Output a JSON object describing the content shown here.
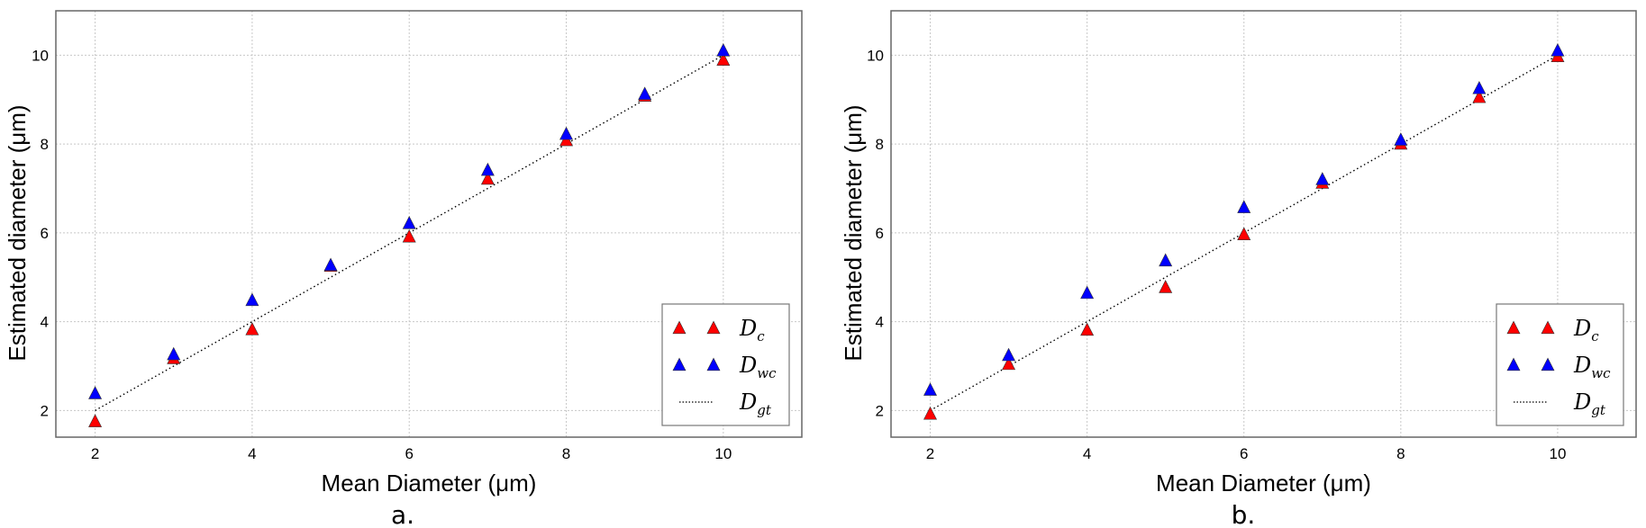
{
  "chart_data": [
    {
      "type": "scatter",
      "caption": "a.",
      "xlabel": "Mean Diameter (μm)",
      "ylabel": "Estimated diameter (μm)",
      "xlim": [
        1.5,
        11
      ],
      "ylim": [
        1.4,
        11
      ],
      "xticks": [
        "2",
        "4",
        "6",
        "8",
        "10"
      ],
      "yticks": [
        "2",
        "4",
        "6",
        "8",
        "10"
      ],
      "grid": true,
      "legend_position": "lower-right",
      "x": [
        2,
        3,
        4,
        5,
        6,
        7,
        8,
        9,
        10
      ],
      "series": [
        {
          "name": "D_c",
          "label_main": "D",
          "label_sub": "c",
          "marker": "triangle",
          "color": "#ff0000",
          "values": [
            1.75,
            3.17,
            3.82,
            5.25,
            5.91,
            7.21,
            8.08,
            9.08,
            9.89
          ]
        },
        {
          "name": "D_wc",
          "label_main": "D",
          "label_sub": "wc",
          "marker": "triangle",
          "color": "#0000ff",
          "values": [
            2.38,
            3.26,
            4.48,
            5.27,
            6.21,
            7.41,
            8.22,
            9.12,
            10.1
          ]
        },
        {
          "name": "D_gt",
          "label_main": "D",
          "label_sub": "gt",
          "marker": "dotted-line",
          "color": "#000000",
          "values": [
            2,
            3,
            4,
            5,
            6,
            7,
            8,
            9,
            10
          ]
        }
      ]
    },
    {
      "type": "scatter",
      "caption": "b.",
      "xlabel": "Mean Diameter (μm)",
      "ylabel": "Estimated diameter (μm)",
      "xlim": [
        1.5,
        11
      ],
      "ylim": [
        1.4,
        11
      ],
      "xticks": [
        "2",
        "4",
        "6",
        "8",
        "10"
      ],
      "yticks": [
        "2",
        "4",
        "6",
        "8",
        "10"
      ],
      "grid": true,
      "legend_position": "lower-right",
      "x": [
        2,
        3,
        4,
        5,
        6,
        7,
        8,
        9,
        10
      ],
      "series": [
        {
          "name": "D_c",
          "label_main": "D",
          "label_sub": "c",
          "marker": "triangle",
          "color": "#ff0000",
          "values": [
            1.92,
            3.04,
            3.81,
            4.77,
            5.96,
            7.12,
            8.0,
            9.05,
            9.97
          ]
        },
        {
          "name": "D_wc",
          "label_main": "D",
          "label_sub": "wc",
          "marker": "triangle",
          "color": "#0000ff",
          "values": [
            2.46,
            3.24,
            4.64,
            5.37,
            6.57,
            7.2,
            8.09,
            9.25,
            10.1
          ]
        },
        {
          "name": "D_gt",
          "label_main": "D",
          "label_sub": "gt",
          "marker": "dotted-line",
          "color": "#000000",
          "values": [
            2,
            3,
            4,
            5,
            6,
            7,
            8,
            9,
            10
          ]
        }
      ]
    }
  ]
}
